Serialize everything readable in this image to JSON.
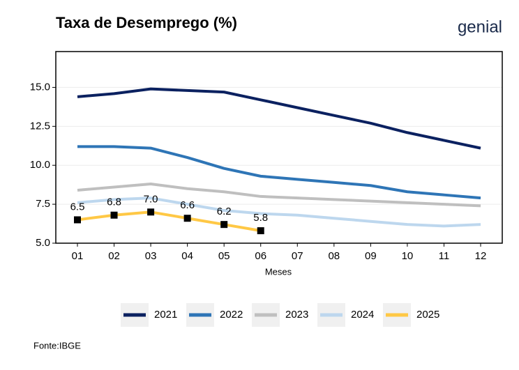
{
  "chart_data": {
    "type": "line",
    "title": "Taxa de Desemprego (%)",
    "logo": "genial",
    "x_label": "Meses",
    "source": "Fonte:IBGE",
    "categories": [
      "01",
      "02",
      "03",
      "04",
      "05",
      "06",
      "07",
      "08",
      "09",
      "10",
      "11",
      "12"
    ],
    "ylim": [
      5,
      17.3
    ],
    "yticks": [
      {
        "value": 5,
        "label": "5.0"
      },
      7.5,
      {
        "value": 10,
        "label": "10.0"
      },
      12.5,
      {
        "value": 15,
        "label": "15.0"
      }
    ],
    "grid": true,
    "legend": "bottom",
    "series": [
      {
        "name": "2021",
        "color": "#0b2160",
        "values": [
          14.4,
          14.6,
          14.9,
          14.8,
          14.7,
          14.2,
          13.7,
          13.2,
          12.7,
          12.1,
          11.6,
          11.1
        ]
      },
      {
        "name": "2022",
        "color": "#2e75b6",
        "values": [
          11.2,
          11.2,
          11.1,
          10.5,
          9.8,
          9.3,
          9.1,
          8.9,
          8.7,
          8.3,
          8.1,
          7.9
        ]
      },
      {
        "name": "2023",
        "color": "#bfbfbf",
        "values": [
          8.4,
          8.6,
          8.8,
          8.5,
          8.3,
          8.0,
          7.9,
          7.8,
          7.7,
          7.6,
          7.5,
          7.4
        ]
      },
      {
        "name": "2024",
        "color": "#bdd7ee",
        "values": [
          7.6,
          7.8,
          7.9,
          7.5,
          7.1,
          6.9,
          6.8,
          6.6,
          6.4,
          6.2,
          6.1,
          6.2
        ]
      },
      {
        "name": "2025",
        "color": "#ffc845",
        "values": [
          6.5,
          6.8,
          7.0,
          6.6,
          6.2,
          5.8,
          null,
          null,
          null,
          null,
          null,
          null
        ],
        "value_labels": [
          "6.5",
          "6.8",
          "7.0",
          "6.6",
          "6.2",
          "5.8",
          null,
          null,
          null,
          null,
          null,
          null
        ],
        "markers": true
      }
    ]
  }
}
